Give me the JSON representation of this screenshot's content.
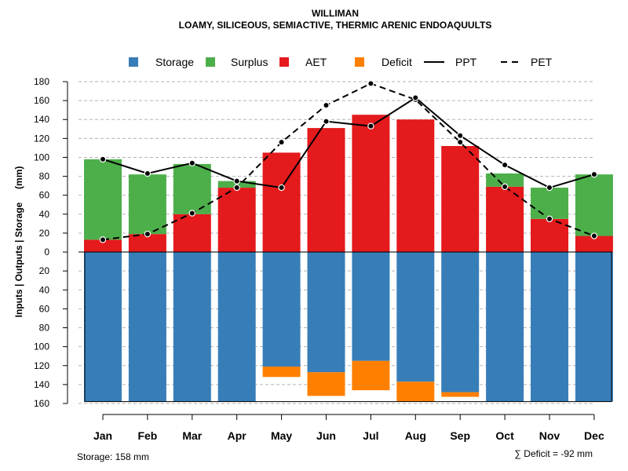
{
  "chart_data": {
    "type": "bar",
    "title": "WILLIMAN",
    "subtitle": "LOAMY, SILICEOUS, SEMIACTIVE, THERMIC ARENIC ENDOAQUULTS",
    "ylabel": "Inputs | Outputs | Storage     (mm)",
    "ylim": [
      -160,
      180
    ],
    "y_ticks": [
      {
        "value": 180,
        "label": "180"
      },
      {
        "value": 160,
        "label": "160"
      },
      {
        "value": 140,
        "label": "140"
      },
      {
        "value": 120,
        "label": "120"
      },
      {
        "value": 100,
        "label": "100"
      },
      {
        "value": 80,
        "label": "80"
      },
      {
        "value": 60,
        "label": "60"
      },
      {
        "value": 40,
        "label": "40"
      },
      {
        "value": 20,
        "label": "20"
      },
      {
        "value": 0,
        "label": "0"
      },
      {
        "value": -20,
        "label": "20"
      },
      {
        "value": -40,
        "label": "40"
      },
      {
        "value": -60,
        "label": "60"
      },
      {
        "value": -80,
        "label": "80"
      },
      {
        "value": -100,
        "label": "100"
      },
      {
        "value": -120,
        "label": "120"
      },
      {
        "value": -140,
        "label": "140"
      },
      {
        "value": -160,
        "label": "160"
      }
    ],
    "categories": [
      "Jan",
      "Feb",
      "Mar",
      "Apr",
      "May",
      "Jun",
      "Jul",
      "Aug",
      "Sep",
      "Oct",
      "Nov",
      "Dec"
    ],
    "series": [
      {
        "name": "Storage",
        "color": "#377eb8",
        "values": [
          158,
          158,
          158,
          158,
          121,
          127,
          115,
          137,
          148,
          158,
          158,
          158
        ]
      },
      {
        "name": "Surplus",
        "color": "#4daf4a",
        "values": [
          85,
          63,
          53,
          7,
          0,
          0,
          0,
          0,
          0,
          14,
          33,
          65
        ]
      },
      {
        "name": "AET",
        "color": "#e41a1c",
        "values": [
          13,
          19,
          40,
          68,
          105,
          131,
          145,
          140,
          112,
          69,
          35,
          17
        ]
      },
      {
        "name": "Deficit",
        "color": "#ff7f00",
        "values": [
          0,
          0,
          0,
          0,
          11,
          25,
          31,
          21,
          5,
          0,
          0,
          0
        ]
      },
      {
        "name": "PPT",
        "color": "#000000",
        "style": "solid",
        "values": [
          98,
          83,
          94,
          75,
          68,
          138,
          133,
          163,
          123,
          92,
          68,
          82
        ]
      },
      {
        "name": "PET",
        "color": "#000000",
        "style": "dashed",
        "values": [
          13,
          19,
          41,
          68,
          116,
          155,
          178,
          161,
          116,
          69,
          35,
          17
        ]
      }
    ],
    "legend": [
      "Storage",
      "Surplus",
      "AET",
      "Deficit",
      "PPT",
      "PET"
    ],
    "legend_position": "top",
    "grid": true,
    "storage_note": "Storage: 158 mm",
    "deficit_note": "∑ Deficit = -92 mm"
  }
}
